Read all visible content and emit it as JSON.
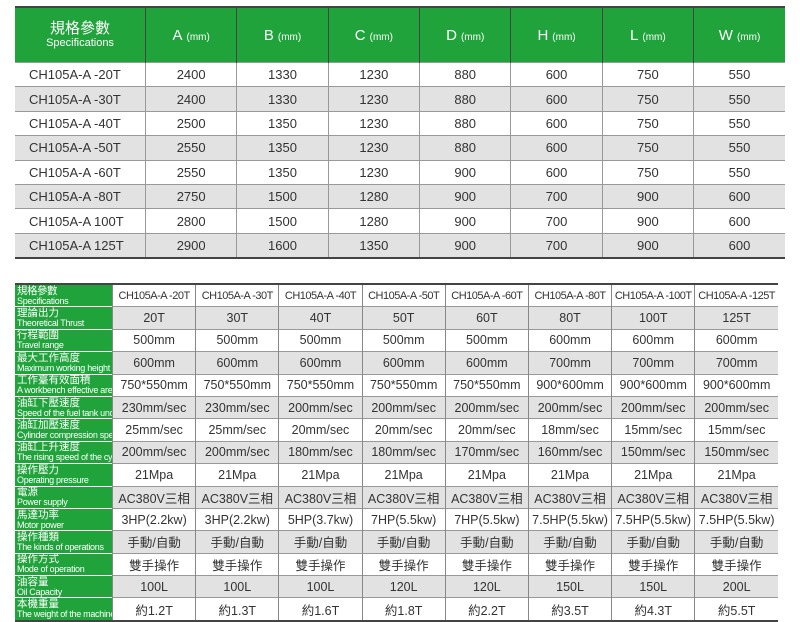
{
  "table1": {
    "header": {
      "cn": "規格參數",
      "en": "Specifications",
      "unit": "(mm)",
      "columns": [
        "A",
        "B",
        "C",
        "D",
        "H",
        "L",
        "W"
      ]
    },
    "rows": [
      [
        "CH105A-A -20T",
        "2400",
        "1330",
        "1230",
        "880",
        "600",
        "750",
        "550"
      ],
      [
        "CH105A-A -30T",
        "2400",
        "1330",
        "1230",
        "880",
        "600",
        "750",
        "550"
      ],
      [
        "CH105A-A -40T",
        "2500",
        "1350",
        "1230",
        "880",
        "600",
        "750",
        "550"
      ],
      [
        "CH105A-A -50T",
        "2550",
        "1350",
        "1230",
        "880",
        "600",
        "750",
        "550"
      ],
      [
        "CH105A-A -60T",
        "2550",
        "1350",
        "1230",
        "900",
        "600",
        "750",
        "550"
      ],
      [
        "CH105A-A -80T",
        "2750",
        "1500",
        "1280",
        "900",
        "700",
        "900",
        "600"
      ],
      [
        "CH105A-A 100T",
        "2800",
        "1500",
        "1280",
        "900",
        "700",
        "900",
        "600"
      ],
      [
        "CH105A-A 125T",
        "2900",
        "1600",
        "1350",
        "900",
        "700",
        "900",
        "600"
      ]
    ]
  },
  "table2": {
    "rows": [
      {
        "cn": "規格參數",
        "en": "Specifications",
        "values": [
          "CH105A-A -20T",
          "CH105A-A -30T",
          "CH105A-A -40T",
          "CH105A-A -50T",
          "CH105A-A -60T",
          "CH105A-A -80T",
          "CH105A-A -100T",
          "CH105A-A -125T"
        ]
      },
      {
        "cn": "理論出力",
        "en": "Theoretical Thrust",
        "values": [
          "20T",
          "30T",
          "40T",
          "50T",
          "60T",
          "80T",
          "100T",
          "125T"
        ]
      },
      {
        "cn": "行程範圍",
        "en": "Travel range",
        "values": [
          "500mm",
          "500mm",
          "500mm",
          "500mm",
          "500mm",
          "600mm",
          "600mm",
          "600mm"
        ]
      },
      {
        "cn": "最大工作高度",
        "en": "Maximum working height",
        "values": [
          "600mm",
          "600mm",
          "600mm",
          "600mm",
          "600mm",
          "700mm",
          "700mm",
          "700mm"
        ]
      },
      {
        "cn": "工作臺有效面積",
        "en": "A workbench effective area",
        "values": [
          "750*550mm",
          "750*550mm",
          "750*550mm",
          "750*550mm",
          "750*550mm",
          "900*600mm",
          "900*600mm",
          "900*600mm"
        ]
      },
      {
        "cn": "油缸下壓速度",
        "en": "Speed of the fuel tank under pressure",
        "values": [
          "230mm/sec",
          "230mm/sec",
          "200mm/sec",
          "200mm/sec",
          "200mm/sec",
          "200mm/sec",
          "200mm/sec",
          "200mm/sec"
        ]
      },
      {
        "cn": "油缸加壓速度",
        "en": "Cylinder compression speed",
        "values": [
          "25mm/sec",
          "25mm/sec",
          "20mm/sec",
          "20mm/sec",
          "20mm/sec",
          "18mm/sec",
          "15mm/sec",
          "15mm/sec"
        ]
      },
      {
        "cn": "油缸上升速度",
        "en": "The rising speed of the cylinder",
        "values": [
          "200mm/sec",
          "200mm/sec",
          "180mm/sec",
          "180mm/sec",
          "170mm/sec",
          "160mm/sec",
          "150mm/sec",
          "150mm/sec"
        ]
      },
      {
        "cn": "操作壓力",
        "en": "Operating pressure",
        "values": [
          "21Mpa",
          "21Mpa",
          "21Mpa",
          "21Mpa",
          "21Mpa",
          "21Mpa",
          "21Mpa",
          "21Mpa"
        ]
      },
      {
        "cn": "電源",
        "en": "Power supply",
        "values": [
          "AC380V三相",
          "AC380V三相",
          "AC380V三相",
          "AC380V三相",
          "AC380V三相",
          "AC380V三相",
          "AC380V三相",
          "AC380V三相"
        ]
      },
      {
        "cn": "馬達功率",
        "en": "Motor power",
        "values": [
          "3HP(2.2kw)",
          "3HP(2.2kw)",
          "5HP(3.7kw)",
          "7HP(5.5kw)",
          "7HP(5.5kw)",
          "7.5HP(5.5kw)",
          "7.5HP(5.5kw)",
          "7.5HP(5.5kw)"
        ]
      },
      {
        "cn": "操作種類",
        "en": "The kinds of operations",
        "values": [
          "手動/自動",
          "手動/自動",
          "手動/自動",
          "手動/自動",
          "手動/自動",
          "手動/自動",
          "手動/自動",
          "手動/自動"
        ]
      },
      {
        "cn": "操作方式",
        "en": "Mode of operation",
        "values": [
          "雙手操作",
          "雙手操作",
          "雙手操作",
          "雙手操作",
          "雙手操作",
          "雙手操作",
          "雙手操作",
          "雙手操作"
        ]
      },
      {
        "cn": "油容量",
        "en": "Oil Capacity",
        "values": [
          "100L",
          "100L",
          "100L",
          "120L",
          "120L",
          "150L",
          "150L",
          "200L"
        ]
      },
      {
        "cn": "本機重量",
        "en": "The weight of the machine",
        "values": [
          "約1.2T",
          "約1.3T",
          "約1.6T",
          "約1.8T",
          "約2.2T",
          "約3.5T",
          "約4.3T",
          "約5.5T"
        ]
      }
    ]
  },
  "colors": {
    "header_green": "#1fa33a",
    "row_gray": "#e2e2e2"
  }
}
